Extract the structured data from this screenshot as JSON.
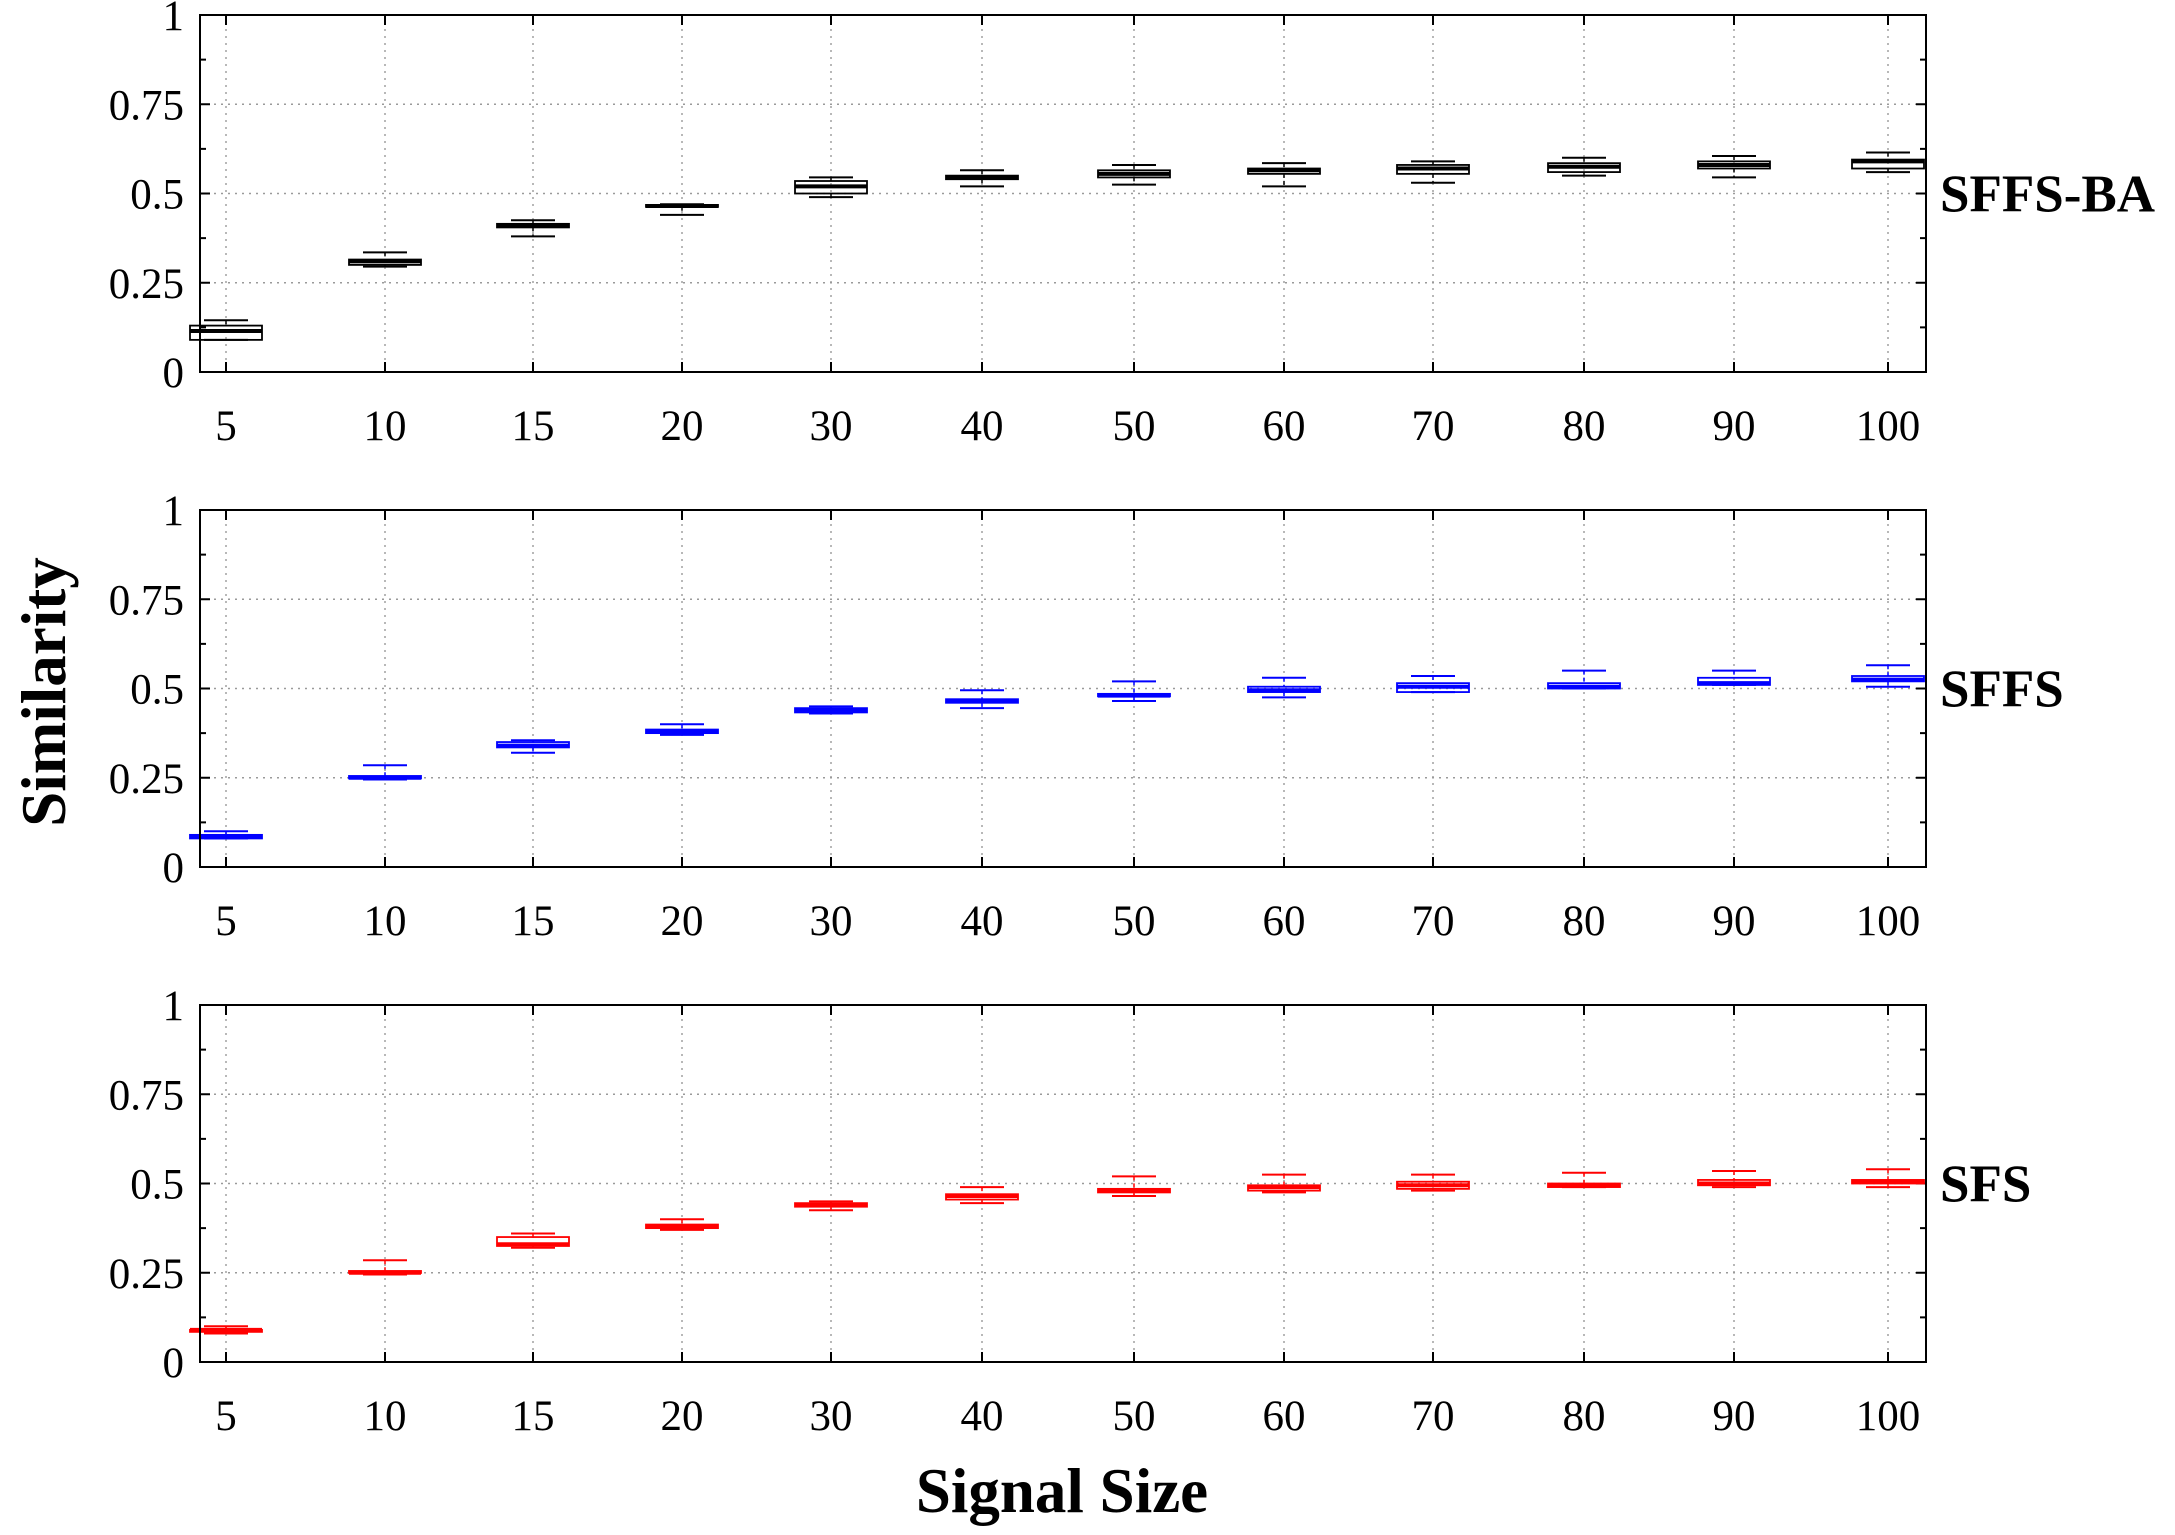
{
  "chart_data": {
    "type": "box",
    "xlabel": "Signal Size",
    "ylabel": "Similarity",
    "categories": [
      "5",
      "10",
      "15",
      "20",
      "30",
      "40",
      "50",
      "60",
      "70",
      "80",
      "90",
      "100"
    ],
    "y_ticks": [
      "0",
      "0.25",
      "0.5",
      "0.75",
      "1"
    ],
    "ylim": [
      0,
      1
    ],
    "grid": true,
    "panels": [
      {
        "name": "SFFS-BA",
        "color": "#000000",
        "boxes": [
          {
            "whisker_low": 0.09,
            "q1": 0.09,
            "median": 0.115,
            "q3": 0.13,
            "whisker_high": 0.145
          },
          {
            "whisker_low": 0.295,
            "q1": 0.3,
            "median": 0.31,
            "q3": 0.315,
            "whisker_high": 0.335
          },
          {
            "whisker_low": 0.38,
            "q1": 0.405,
            "median": 0.41,
            "q3": 0.415,
            "whisker_high": 0.425
          },
          {
            "whisker_low": 0.44,
            "q1": 0.463,
            "median": 0.465,
            "q3": 0.468,
            "whisker_high": 0.47
          },
          {
            "whisker_low": 0.49,
            "q1": 0.5,
            "median": 0.52,
            "q3": 0.535,
            "whisker_high": 0.545
          },
          {
            "whisker_low": 0.52,
            "q1": 0.54,
            "median": 0.545,
            "q3": 0.55,
            "whisker_high": 0.565
          },
          {
            "whisker_low": 0.525,
            "q1": 0.545,
            "median": 0.555,
            "q3": 0.565,
            "whisker_high": 0.58
          },
          {
            "whisker_low": 0.52,
            "q1": 0.555,
            "median": 0.565,
            "q3": 0.57,
            "whisker_high": 0.585
          },
          {
            "whisker_low": 0.53,
            "q1": 0.555,
            "median": 0.57,
            "q3": 0.58,
            "whisker_high": 0.59
          },
          {
            "whisker_low": 0.55,
            "q1": 0.56,
            "median": 0.575,
            "q3": 0.585,
            "whisker_high": 0.6
          },
          {
            "whisker_low": 0.545,
            "q1": 0.57,
            "median": 0.58,
            "q3": 0.59,
            "whisker_high": 0.605
          },
          {
            "whisker_low": 0.56,
            "q1": 0.57,
            "median": 0.59,
            "q3": 0.595,
            "whisker_high": 0.615
          }
        ]
      },
      {
        "name": "SFFS",
        "color": "#0000ff",
        "boxes": [
          {
            "whisker_low": 0.08,
            "q1": 0.08,
            "median": 0.085,
            "q3": 0.09,
            "whisker_high": 0.1
          },
          {
            "whisker_low": 0.245,
            "q1": 0.248,
            "median": 0.25,
            "q3": 0.255,
            "whisker_high": 0.285
          },
          {
            "whisker_low": 0.32,
            "q1": 0.335,
            "median": 0.34,
            "q3": 0.35,
            "whisker_high": 0.355
          },
          {
            "whisker_low": 0.37,
            "q1": 0.375,
            "median": 0.38,
            "q3": 0.385,
            "whisker_high": 0.4
          },
          {
            "whisker_low": 0.43,
            "q1": 0.433,
            "median": 0.44,
            "q3": 0.445,
            "whisker_high": 0.45
          },
          {
            "whisker_low": 0.445,
            "q1": 0.46,
            "median": 0.465,
            "q3": 0.47,
            "whisker_high": 0.495
          },
          {
            "whisker_low": 0.465,
            "q1": 0.478,
            "median": 0.48,
            "q3": 0.485,
            "whisker_high": 0.52
          },
          {
            "whisker_low": 0.475,
            "q1": 0.49,
            "median": 0.495,
            "q3": 0.505,
            "whisker_high": 0.53
          },
          {
            "whisker_low": 0.49,
            "q1": 0.49,
            "median": 0.505,
            "q3": 0.515,
            "whisker_high": 0.535
          },
          {
            "whisker_low": 0.5,
            "q1": 0.5,
            "median": 0.505,
            "q3": 0.515,
            "whisker_high": 0.55
          },
          {
            "whisker_low": 0.51,
            "q1": 0.51,
            "median": 0.515,
            "q3": 0.53,
            "whisker_high": 0.55
          },
          {
            "whisker_low": 0.505,
            "q1": 0.52,
            "median": 0.525,
            "q3": 0.535,
            "whisker_high": 0.565
          }
        ]
      },
      {
        "name": "SFS",
        "color": "#ff0000",
        "boxes": [
          {
            "whisker_low": 0.08,
            "q1": 0.085,
            "median": 0.09,
            "q3": 0.09,
            "whisker_high": 0.1
          },
          {
            "whisker_low": 0.245,
            "q1": 0.25,
            "median": 0.25,
            "q3": 0.255,
            "whisker_high": 0.285
          },
          {
            "whisker_low": 0.32,
            "q1": 0.325,
            "median": 0.33,
            "q3": 0.35,
            "whisker_high": 0.36
          },
          {
            "whisker_low": 0.37,
            "q1": 0.375,
            "median": 0.38,
            "q3": 0.385,
            "whisker_high": 0.4
          },
          {
            "whisker_low": 0.425,
            "q1": 0.435,
            "median": 0.44,
            "q3": 0.445,
            "whisker_high": 0.45
          },
          {
            "whisker_low": 0.445,
            "q1": 0.455,
            "median": 0.465,
            "q3": 0.47,
            "whisker_high": 0.49
          },
          {
            "whisker_low": 0.465,
            "q1": 0.475,
            "median": 0.48,
            "q3": 0.485,
            "whisker_high": 0.52
          },
          {
            "whisker_low": 0.475,
            "q1": 0.48,
            "median": 0.49,
            "q3": 0.495,
            "whisker_high": 0.525
          },
          {
            "whisker_low": 0.48,
            "q1": 0.485,
            "median": 0.495,
            "q3": 0.505,
            "whisker_high": 0.525
          },
          {
            "whisker_low": 0.49,
            "q1": 0.49,
            "median": 0.495,
            "q3": 0.5,
            "whisker_high": 0.53
          },
          {
            "whisker_low": 0.49,
            "q1": 0.495,
            "median": 0.5,
            "q3": 0.51,
            "whisker_high": 0.535
          },
          {
            "whisker_low": 0.49,
            "q1": 0.5,
            "median": 0.505,
            "q3": 0.51,
            "whisker_high": 0.54
          }
        ]
      }
    ]
  }
}
